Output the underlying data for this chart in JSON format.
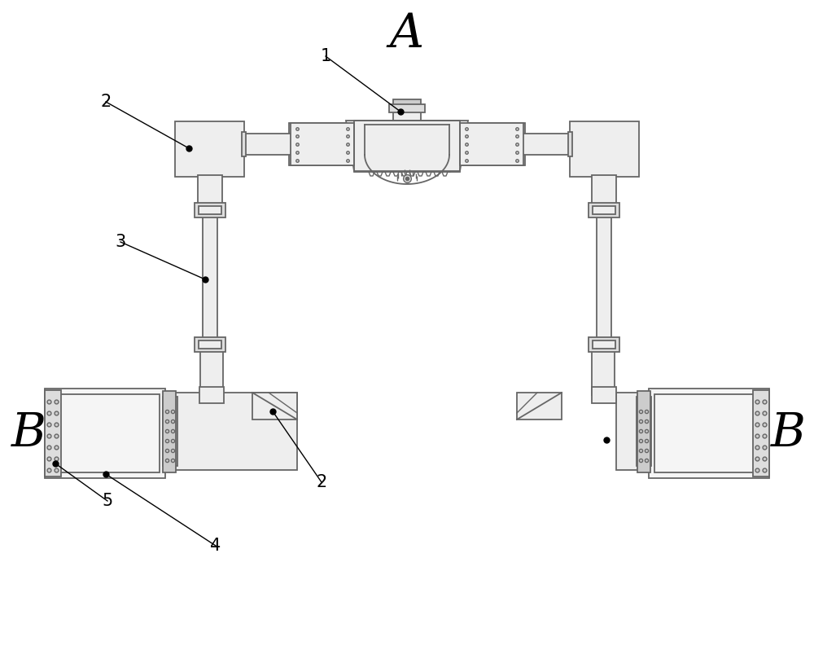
{
  "background_color": "#ffffff",
  "line_color": "#666666",
  "fill_color": "#eeeeee",
  "fill_light": "#f5f5f5",
  "fill_dark": "#cccccc",
  "fill_med": "#dddddd",
  "label_A": "A",
  "label_B": "B",
  "label_1": "1",
  "label_2": "2",
  "label_3": "3",
  "label_4": "4",
  "label_5": "5",
  "figsize": [
    10.0,
    8.25
  ],
  "dpi": 100
}
